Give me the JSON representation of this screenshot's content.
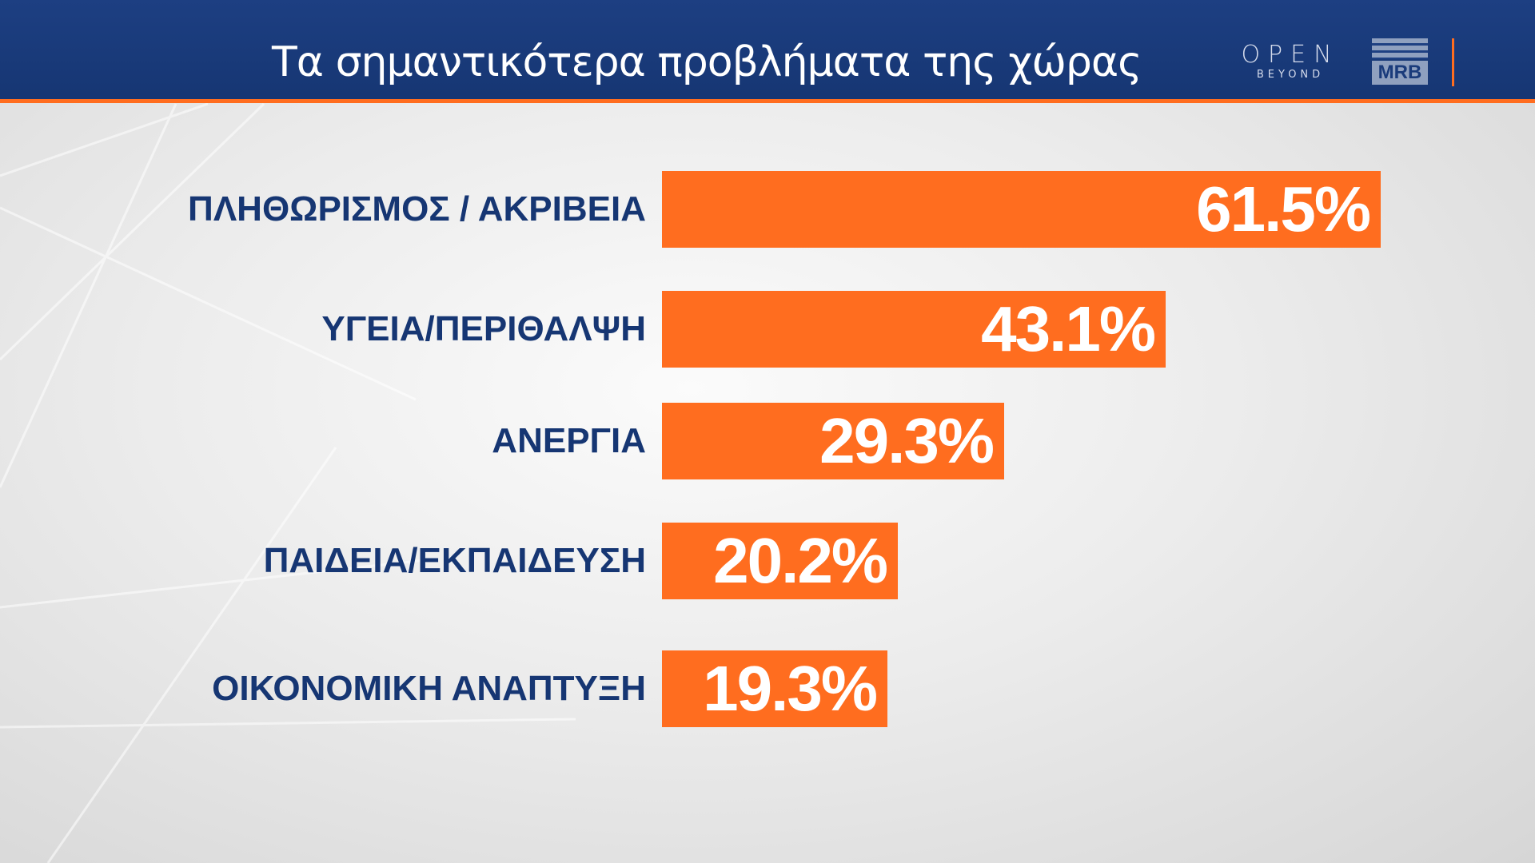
{
  "header": {
    "title": "Τα σημαντικότερα προβλήματα της χώρας",
    "logo_open": "OPEN",
    "logo_open_sub": "BEYOND",
    "logo_mrb": "MRB"
  },
  "colors": {
    "header_bg": "#163673",
    "accent": "#ff6d1f",
    "label_text": "#163673",
    "value_text": "#ffffff"
  },
  "chart_data": {
    "type": "bar",
    "orientation": "horizontal",
    "title": "Τα σημαντικότερα προβλήματα της χώρας",
    "categories": [
      "ΠΛΗΘΩΡΙΣΜΟΣ / ΑΚΡΙΒΕΙΑ",
      "ΥΓΕΙΑ/ΠΕΡΙΘΑΛΨΗ",
      "ΑΝΕΡΓΙΑ",
      "ΠΑΙΔΕΙΑ/ΕΚΠΑΙΔΕΥΣΗ",
      "ΟΙΚΟΝΟΜΙΚΗ ΑΝΑΠΤΥΞΗ"
    ],
    "values": [
      61.5,
      43.1,
      29.3,
      20.2,
      19.3
    ],
    "value_labels": [
      "61.5%",
      "43.1%",
      "29.3%",
      "20.2%",
      "19.3%"
    ],
    "unit": "%",
    "grid": false,
    "legend": "none"
  }
}
